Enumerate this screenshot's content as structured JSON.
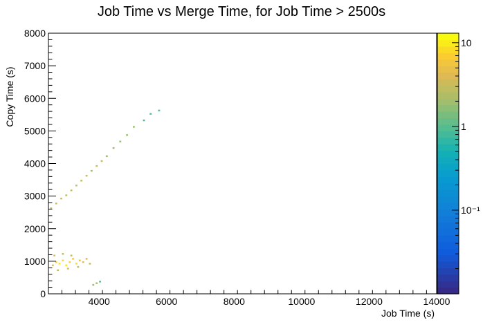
{
  "chart_data": {
    "type": "heatmap",
    "title": "Job Time vs Merge Time, for Job Time > 2500s",
    "xlabel": "Job Time (s)",
    "ylabel": "Copy Time (s)",
    "xlim": [
      2500,
      14000
    ],
    "ylim": [
      0,
      8000
    ],
    "x_ticks": [
      4000,
      6000,
      8000,
      10000,
      12000,
      14000
    ],
    "y_ticks": [
      0,
      1000,
      2000,
      3000,
      4000,
      5000,
      6000,
      7000,
      8000
    ],
    "z_scale": "log",
    "zlim": [
      0.01,
      13
    ],
    "z_tick_labels": [
      "10",
      "1",
      "10⁻¹"
    ],
    "z_tick_values": [
      10,
      1,
      0.1
    ],
    "grid": false,
    "bin_width_x": 57.5,
    "bin_width_y": 50,
    "points": [
      {
        "x": 2600,
        "y": 850,
        "z": 5
      },
      {
        "x": 2700,
        "y": 950,
        "z": 8
      },
      {
        "x": 2800,
        "y": 900,
        "z": 10
      },
      {
        "x": 2900,
        "y": 1000,
        "z": 9
      },
      {
        "x": 3000,
        "y": 850,
        "z": 10
      },
      {
        "x": 3100,
        "y": 950,
        "z": 8
      },
      {
        "x": 3200,
        "y": 1050,
        "z": 7
      },
      {
        "x": 3300,
        "y": 900,
        "z": 9
      },
      {
        "x": 3400,
        "y": 1000,
        "z": 6
      },
      {
        "x": 3500,
        "y": 950,
        "z": 5
      },
      {
        "x": 3600,
        "y": 1050,
        "z": 4
      },
      {
        "x": 3700,
        "y": 900,
        "z": 3
      },
      {
        "x": 2650,
        "y": 1150,
        "z": 4
      },
      {
        "x": 2900,
        "y": 1200,
        "z": 3
      },
      {
        "x": 3150,
        "y": 1150,
        "z": 3
      },
      {
        "x": 2750,
        "y": 700,
        "z": 3
      },
      {
        "x": 3050,
        "y": 750,
        "z": 4
      },
      {
        "x": 3350,
        "y": 800,
        "z": 3
      },
      {
        "x": 2550,
        "y": 2600,
        "z": 3
      },
      {
        "x": 2700,
        "y": 2750,
        "z": 3
      },
      {
        "x": 2850,
        "y": 2900,
        "z": 4
      },
      {
        "x": 3000,
        "y": 3000,
        "z": 3
      },
      {
        "x": 3150,
        "y": 3150,
        "z": 3
      },
      {
        "x": 3300,
        "y": 3300,
        "z": 3
      },
      {
        "x": 3450,
        "y": 3450,
        "z": 3
      },
      {
        "x": 3600,
        "y": 3600,
        "z": 3
      },
      {
        "x": 3750,
        "y": 3750,
        "z": 2
      },
      {
        "x": 3900,
        "y": 3900,
        "z": 3
      },
      {
        "x": 4050,
        "y": 4050,
        "z": 3
      },
      {
        "x": 4200,
        "y": 4200,
        "z": 2
      },
      {
        "x": 4400,
        "y": 4450,
        "z": 2
      },
      {
        "x": 4600,
        "y": 4650,
        "z": 2
      },
      {
        "x": 4800,
        "y": 4850,
        "z": 2
      },
      {
        "x": 5000,
        "y": 5100,
        "z": 2
      },
      {
        "x": 5300,
        "y": 5300,
        "z": 1
      },
      {
        "x": 5500,
        "y": 5500,
        "z": 1
      },
      {
        "x": 5750,
        "y": 5600,
        "z": 1
      },
      {
        "x": 3800,
        "y": 250,
        "z": 2
      },
      {
        "x": 3900,
        "y": 300,
        "z": 2
      },
      {
        "x": 4000,
        "y": 350,
        "z": 1
      }
    ]
  }
}
